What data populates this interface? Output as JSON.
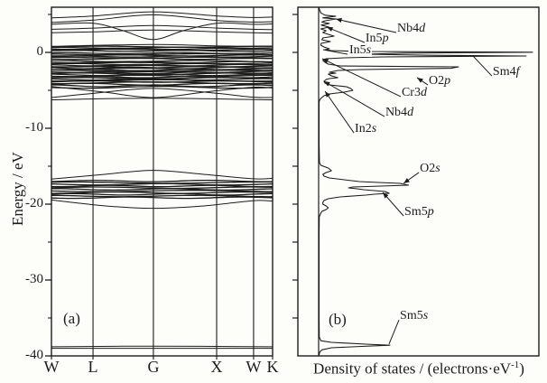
{
  "figure": {
    "background": "#fdfdfa",
    "ink_color": "#1c1c1c",
    "panel_a": {
      "label": "(a)",
      "y_axis_label": "Energy / eV",
      "y_ticks_major": [
        0,
        -10,
        -20,
        -30,
        -40
      ],
      "y_ticks_minor": [
        5,
        -5,
        -15,
        -25,
        -35
      ],
      "k_point_labels": [
        "W",
        "L",
        "G",
        "X",
        "W",
        "K"
      ]
    },
    "panel_b": {
      "label": "(b)",
      "x_axis_label": "Density of states / (electrons·eV⁻¹)",
      "y_ticks": [
        5,
        0,
        -5,
        -10,
        -15,
        -20,
        -25,
        -30,
        -35
      ]
    }
  },
  "chart_data": [
    {
      "type": "line",
      "subtype": "band-structure",
      "panel": "a",
      "ylabel": "Energy / eV",
      "ylim": [
        -40,
        6
      ],
      "grid": "vertical lines at high-symmetry k-points",
      "k_path": [
        "W",
        "L",
        "G",
        "X",
        "W",
        "K"
      ],
      "kpoint_fractions": [
        0,
        0.188,
        0.461,
        0.747,
        0.914,
        1
      ],
      "bands": [
        {
          "name": "conduction-arc-1",
          "points": [
            [
              0,
              4.55
            ],
            [
              0.19,
              4.8
            ],
            [
              0.46,
              5.35
            ],
            [
              0.75,
              4.8
            ],
            [
              0.91,
              4.6
            ],
            [
              1,
              4.65
            ]
          ]
        },
        {
          "name": "conduction-arc-2",
          "points": [
            [
              0,
              3.95
            ],
            [
              0.19,
              4.25
            ],
            [
              0.46,
              4.95
            ],
            [
              0.75,
              4.2
            ],
            [
              0.91,
              4.0
            ],
            [
              1,
              4.05
            ]
          ]
        },
        {
          "name": "conduction-valley-at-G",
          "points": [
            [
              0,
              3.7
            ],
            [
              0.19,
              3.85
            ],
            [
              0.32,
              2.9
            ],
            [
              0.46,
              1.7
            ],
            [
              0.6,
              2.9
            ],
            [
              0.75,
              3.85
            ],
            [
              0.91,
              3.7
            ],
            [
              1,
              3.75
            ]
          ]
        },
        {
          "name": "conduction-band-4",
          "points": [
            [
              0,
              3.05
            ],
            [
              0.19,
              3.2
            ],
            [
              0.46,
              3.55
            ],
            [
              0.75,
              3.2
            ],
            [
              0.91,
              3.05
            ],
            [
              1,
              3.0
            ]
          ]
        },
        {
          "name": "conduction-band-5",
          "points": [
            [
              0,
              2.6
            ],
            [
              0.19,
              2.7
            ],
            [
              0.46,
              2.95
            ],
            [
              0.75,
              2.7
            ],
            [
              0.91,
              2.6
            ],
            [
              1,
              2.55
            ]
          ]
        },
        {
          "name": "fermi-cluster-top-arc",
          "points": [
            [
              0,
              0.8
            ],
            [
              0.46,
              1.05
            ],
            [
              0.75,
              0.85
            ],
            [
              1,
              0.8
            ]
          ]
        },
        {
          "name": "valence-arc-down",
          "points": [
            [
              0,
              -4.5
            ],
            [
              0.23,
              -5.2
            ],
            [
              0.46,
              -5.95
            ],
            [
              0.7,
              -5.2
            ],
            [
              0.91,
              -4.6
            ],
            [
              1,
              -4.7
            ]
          ]
        },
        {
          "name": "valence-arc-up",
          "points": [
            [
              0,
              -5.95
            ],
            [
              0.19,
              -5.4
            ],
            [
              0.46,
              -4.75
            ],
            [
              0.75,
              -5.4
            ],
            [
              0.91,
              -5.9
            ],
            [
              1,
              -5.95
            ]
          ]
        },
        {
          "name": "valence-bottom-band",
          "points": [
            [
              0,
              -6.25
            ],
            [
              0.46,
              -6.05
            ],
            [
              1,
              -6.25
            ]
          ]
        },
        {
          "name": "semicore-top-arc",
          "points": [
            [
              0,
              -16.7
            ],
            [
              0.23,
              -16.1
            ],
            [
              0.46,
              -15.55
            ],
            [
              0.7,
              -16.1
            ],
            [
              0.91,
              -16.65
            ],
            [
              1,
              -16.6
            ]
          ]
        },
        {
          "name": "semicore-bottom-arc",
          "points": [
            [
              0,
              -19.45
            ],
            [
              0.25,
              -20.25
            ],
            [
              0.46,
              -20.55
            ],
            [
              0.68,
              -20.25
            ],
            [
              0.91,
              -19.55
            ],
            [
              1,
              -19.6
            ]
          ]
        },
        {
          "name": "deep-band-1",
          "points": [
            [
              0,
              -38.8
            ],
            [
              0.46,
              -38.72
            ],
            [
              1,
              -38.8
            ]
          ]
        },
        {
          "name": "deep-band-2",
          "points": [
            [
              0,
              -39.0
            ],
            [
              1,
              -39.0
            ]
          ]
        }
      ],
      "band_clusters": [
        {
          "name": "fermi-flat-bands-upper",
          "e_top": 0.75,
          "e_bottom": 0.2,
          "lines": 5,
          "wiggle": 0.07
        },
        {
          "name": "fermi-flat-bands-lower",
          "e_top": -0.1,
          "e_bottom": -0.85,
          "lines": 6,
          "wiggle": 0.07
        },
        {
          "name": "valence-cluster-1",
          "e_top": -1.15,
          "e_bottom": -1.95,
          "lines": 7,
          "wiggle": 0.09
        },
        {
          "name": "valence-cluster-2",
          "e_top": -2.05,
          "e_bottom": -2.95,
          "lines": 8,
          "wiggle": 0.1
        },
        {
          "name": "valence-cluster-3",
          "e_top": -3.1,
          "e_bottom": -3.85,
          "lines": 6,
          "wiggle": 0.09
        },
        {
          "name": "valence-cluster-4",
          "e_top": -4.0,
          "e_bottom": -4.6,
          "lines": 4,
          "wiggle": 0.12
        },
        {
          "name": "semicore-cluster",
          "e_top": -16.95,
          "e_bottom": -19.15,
          "lines": 11,
          "wiggle": 0.09
        }
      ]
    },
    {
      "type": "line",
      "subtype": "density-of-states",
      "panel": "b",
      "xlabel": "Density of states / (electrons·eV⁻¹)",
      "x_axis_numeric_labels": "none shown",
      "xlim": [
        0,
        10.5
      ],
      "ylim": [
        -40,
        6
      ],
      "orientation": "DOS on x axis, energy (eV) on y axis",
      "points": [
        [
          5.95,
          0
        ],
        [
          5.2,
          0.1
        ],
        [
          4.9,
          0.3
        ],
        [
          4.76,
          0.8
        ],
        [
          4.55,
          0.2
        ],
        [
          4.4,
          0.82
        ],
        [
          4.17,
          0.3
        ],
        [
          4.0,
          0.15
        ],
        [
          3.81,
          0.5
        ],
        [
          3.6,
          0.12
        ],
        [
          3.33,
          0.48
        ],
        [
          3.1,
          0.1
        ],
        [
          2.86,
          0.35
        ],
        [
          2.62,
          0.2
        ],
        [
          2.38,
          0.45
        ],
        [
          2.14,
          0.72
        ],
        [
          1.9,
          0.2
        ],
        [
          1.67,
          0.15
        ],
        [
          1.43,
          0.55
        ],
        [
          1.19,
          0.12
        ],
        [
          0.95,
          0.1
        ],
        [
          0.71,
          0.25
        ],
        [
          0.48,
          0.5
        ],
        [
          0.36,
          0.3
        ],
        [
          0.24,
          0.6
        ],
        [
          0.12,
          2.0
        ],
        [
          0.02,
          10.0
        ],
        [
          -0.1,
          4.0
        ],
        [
          -0.24,
          2.2
        ],
        [
          -0.38,
          5.2
        ],
        [
          -0.48,
          9.7
        ],
        [
          -0.6,
          3.0
        ],
        [
          -0.71,
          1.2
        ],
        [
          -0.83,
          0.35
        ],
        [
          -1.07,
          0.2
        ],
        [
          -1.31,
          0.3
        ],
        [
          -1.55,
          0.45
        ],
        [
          -1.79,
          1.0
        ],
        [
          -1.9,
          6.54
        ],
        [
          -2.1,
          6.2
        ],
        [
          -2.26,
          2.0
        ],
        [
          -2.38,
          0.9
        ],
        [
          -2.62,
          0.5
        ],
        [
          -2.74,
          0.8
        ],
        [
          -2.86,
          0.45
        ],
        [
          -3.1,
          0.6
        ],
        [
          -3.33,
          0.9
        ],
        [
          -3.45,
          0.5
        ],
        [
          -3.57,
          0.35
        ],
        [
          -3.81,
          0.25
        ],
        [
          -4.05,
          0.3
        ],
        [
          -4.29,
          0.5
        ],
        [
          -4.52,
          1.3
        ],
        [
          -4.76,
          1.5
        ],
        [
          -5.0,
          1.6
        ],
        [
          -5.24,
          1.2
        ],
        [
          -5.48,
          0.5
        ],
        [
          -5.71,
          0.25
        ],
        [
          -5.95,
          0.15
        ],
        [
          -6.19,
          0.06
        ],
        [
          -6.55,
          0.02
        ],
        [
          -8,
          0.02
        ],
        [
          -12,
          0.02
        ],
        [
          -14.5,
          0.04
        ],
        [
          -14.88,
          0.1
        ],
        [
          -15.24,
          0.45
        ],
        [
          -15.6,
          0.6
        ],
        [
          -15.83,
          0.35
        ],
        [
          -16.07,
          0.2
        ],
        [
          -16.31,
          0.25
        ],
        [
          -16.55,
          0.5
        ],
        [
          -16.79,
          1.2
        ],
        [
          -17.02,
          1.9
        ],
        [
          -17.14,
          2.8
        ],
        [
          -17.26,
          3.8
        ],
        [
          -17.5,
          4.2
        ],
        [
          -17.62,
          2.9
        ],
        [
          -17.74,
          1.6
        ],
        [
          -17.86,
          1.4
        ],
        [
          -17.98,
          1.8
        ],
        [
          -18.1,
          2.1
        ],
        [
          -18.33,
          3.1
        ],
        [
          -18.57,
          3.3
        ],
        [
          -18.69,
          2.6
        ],
        [
          -18.81,
          2.2
        ],
        [
          -19.05,
          1.0
        ],
        [
          -19.29,
          0.45
        ],
        [
          -19.52,
          0.25
        ],
        [
          -19.76,
          0.2
        ],
        [
          -20.0,
          0.2
        ],
        [
          -20.24,
          0.35
        ],
        [
          -20.48,
          0.45
        ],
        [
          -20.71,
          0.35
        ],
        [
          -20.95,
          0.15
        ],
        [
          -21.19,
          0.1
        ],
        [
          -21.67,
          0.03
        ],
        [
          -24,
          0.02
        ],
        [
          -30,
          0.02
        ],
        [
          -35,
          0.02
        ],
        [
          -37.5,
          0.03
        ],
        [
          -38.0,
          0.1
        ],
        [
          -38.21,
          0.6
        ],
        [
          -38.45,
          2.2
        ],
        [
          -38.6,
          3.33
        ],
        [
          -38.75,
          2.0
        ],
        [
          -38.93,
          0.6
        ],
        [
          -39.2,
          0.15
        ],
        [
          -39.5,
          0.05
        ],
        [
          -39.9,
          0.02
        ]
      ],
      "annotations": [
        {
          "label": "Nb4d",
          "text_at": [
            3.67,
            3.93
          ],
          "target": [
            0.8,
            4.4
          ],
          "arrowhead": true
        },
        {
          "label": "In5p",
          "text_at": [
            2.19,
            2.62
          ],
          "target": [
            0.38,
            3.33
          ],
          "arrowhead": true
        },
        {
          "label": "In5s",
          "text_at": [
            1.39,
            1.07
          ],
          "target": [
            0.21,
            0.36
          ],
          "arrowhead": false,
          "boxed": true
        },
        {
          "label": "Sm4f",
          "text_at": [
            8.14,
            -1.79
          ],
          "target": [
            7.22,
            -0.48
          ],
          "arrowhead": false
        },
        {
          "label": "O2p",
          "text_at": [
            5.15,
            -2.98
          ],
          "target": [
            4.6,
            -3.33
          ],
          "arrowhead": true
        },
        {
          "label": "Cr3d",
          "text_at": [
            3.88,
            -4.52
          ],
          "target": [
            0.17,
            -0.83
          ],
          "arrowhead": true
        },
        {
          "label": "Nb4d",
          "text_at": [
            3.12,
            -7.14
          ],
          "target": [
            0.25,
            -3.81
          ],
          "arrowhead": true
        },
        {
          "label": "In2s",
          "text_at": [
            1.69,
            -9.29
          ],
          "target": [
            0.3,
            -5.12
          ],
          "arrowhead": true
        },
        {
          "label": "O2s",
          "text_at": [
            4.73,
            -14.52
          ],
          "target": [
            3.97,
            -17.26
          ],
          "arrowhead": true
        },
        {
          "label": "Sm5p",
          "text_at": [
            4.01,
            -20.24
          ],
          "target": [
            3.0,
            -18.45
          ],
          "arrowhead": true
        },
        {
          "label": "Sm5s",
          "text_at": [
            3.8,
            -33.93
          ],
          "target": [
            3.29,
            -38.45
          ],
          "arrowhead": false
        }
      ]
    }
  ]
}
